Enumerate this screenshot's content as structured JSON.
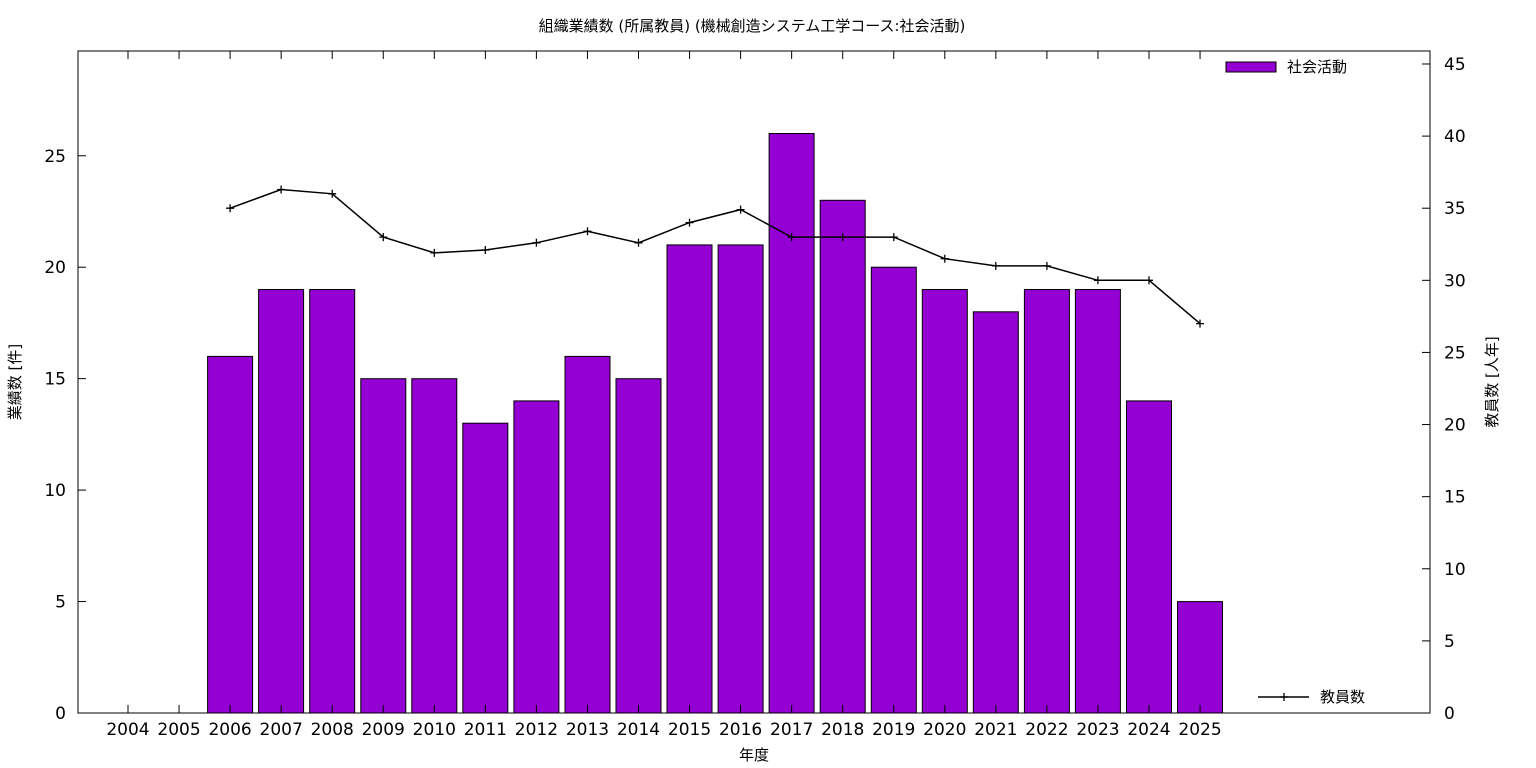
{
  "chart_data": {
    "type": "bar",
    "title": "組織業績数 (所属教員) (機械創造システム工学コース:社会活動)",
    "xlabel": "年度",
    "ylabel": "業績数 [件]",
    "y2label": "教員数 [人年]",
    "categories": [
      "2004",
      "2005",
      "2006",
      "2007",
      "2008",
      "2009",
      "2010",
      "2011",
      "2012",
      "2013",
      "2014",
      "2015",
      "2016",
      "2017",
      "2018",
      "2019",
      "2020",
      "2021",
      "2022",
      "2023",
      "2024",
      "2025"
    ],
    "series": [
      {
        "name": "社会活動",
        "type": "bar",
        "axis": "left",
        "color": "#9400d3",
        "values": [
          null,
          null,
          16,
          19,
          19,
          15,
          15,
          13,
          14,
          16,
          15,
          21,
          21,
          26,
          23,
          20,
          19,
          18,
          19,
          19,
          14,
          5
        ]
      },
      {
        "name": "教員数",
        "type": "line",
        "axis": "right",
        "color": "#000000",
        "values": [
          null,
          null,
          35,
          36.3,
          36,
          33,
          31.9,
          32.1,
          32.6,
          33.4,
          32.6,
          34,
          34.9,
          33,
          33,
          33,
          31.5,
          31,
          31,
          30,
          30,
          27
        ]
      }
    ],
    "ylim": [
      0,
      29.7
    ],
    "yticks": [
      0,
      5,
      10,
      15,
      20,
      25
    ],
    "y2lim": [
      0,
      45.9
    ],
    "y2ticks": [
      0,
      5,
      10,
      15,
      20,
      25,
      30,
      35,
      40,
      45
    ],
    "legend_position": "top-right (bars), bottom-right (line)",
    "grid": false
  }
}
